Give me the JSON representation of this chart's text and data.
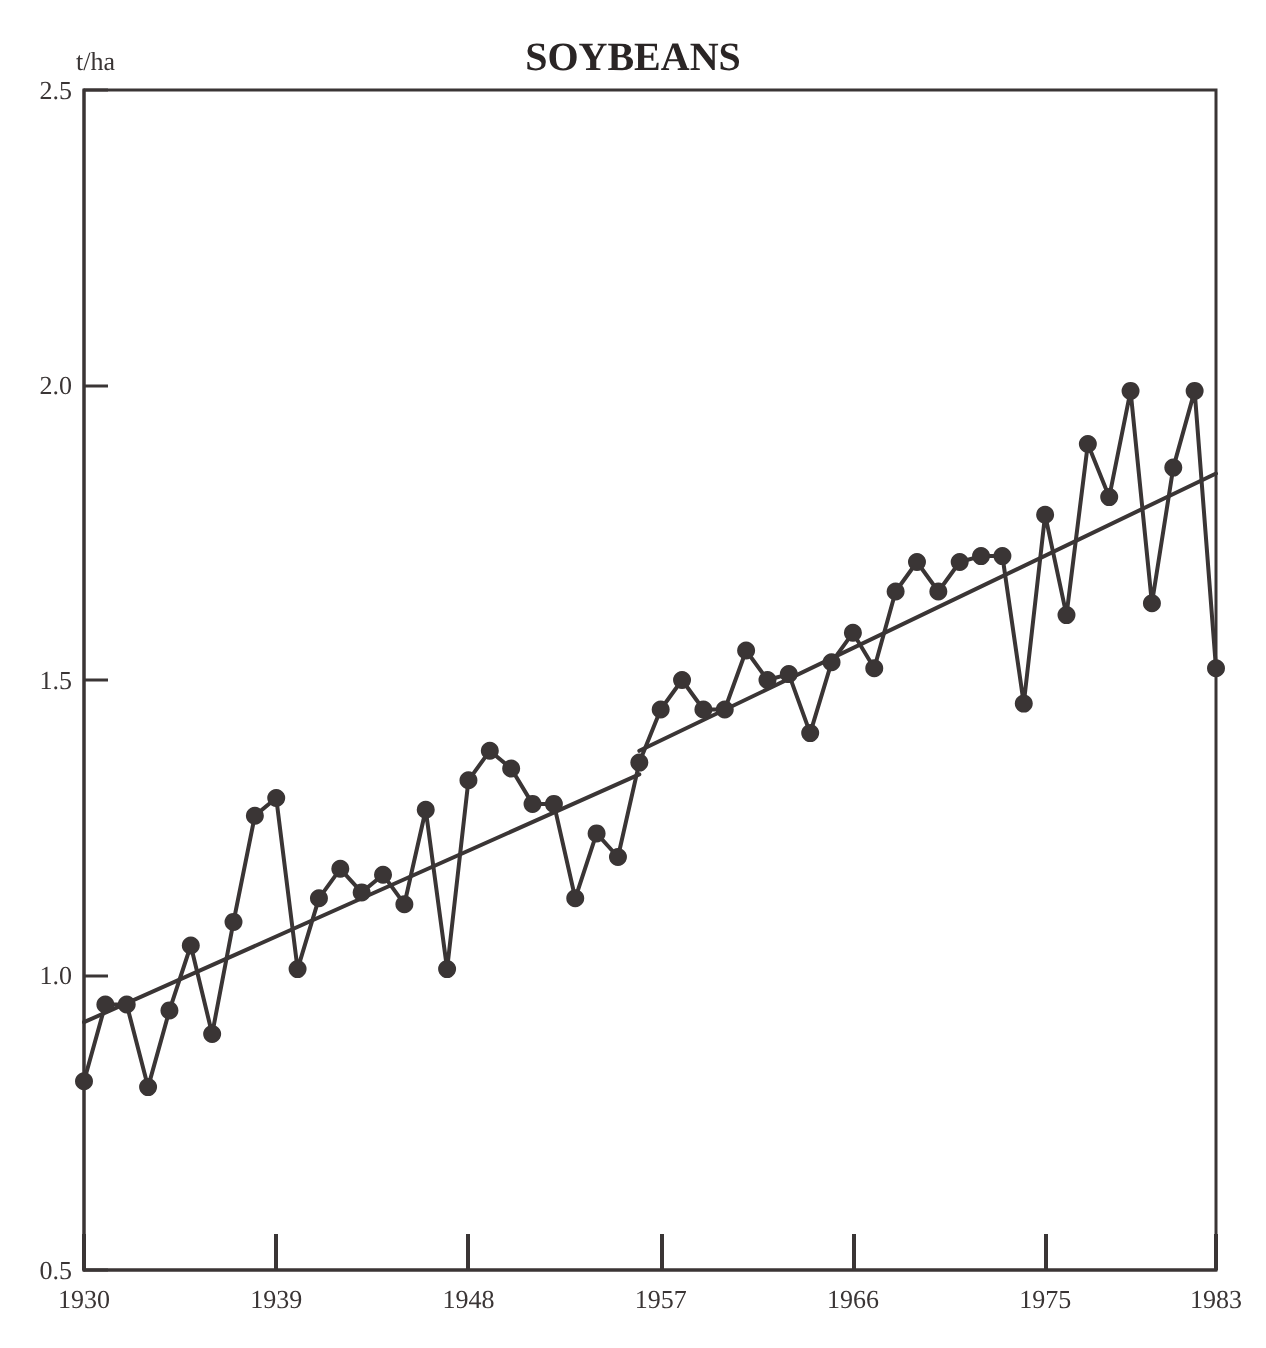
{
  "chart_data": {
    "type": "line",
    "title": "SOYBEANS",
    "ylabel": "t/ha",
    "xlim": [
      1930,
      1983
    ],
    "xticks": [
      1930,
      1939,
      1948,
      1957,
      1966,
      1975,
      1983
    ],
    "ylim": [
      0.5,
      2.5
    ],
    "yticks": [
      0.5,
      {
        "value": 1,
        "label": "1.0"
      },
      1.5,
      {
        "value": 2,
        "label": "2.0"
      },
      2.5
    ],
    "grid": false,
    "series": [
      {
        "color": "#3a3535",
        "marker": "circle",
        "x": [
          1930,
          1931,
          1932,
          1933,
          1934,
          1935,
          1936,
          1937,
          1938,
          1939,
          1940,
          1941,
          1942,
          1943,
          1944,
          1945,
          1946,
          1947,
          1948,
          1949,
          1950,
          1951,
          1952,
          1953,
          1954,
          1955,
          1956,
          1957,
          1958,
          1959,
          1960,
          1961,
          1962,
          1963,
          1964,
          1965,
          1966,
          1967,
          1968,
          1969,
          1970,
          1971,
          1972,
          1973,
          1974,
          1975,
          1976,
          1977,
          1978,
          1979,
          1980,
          1981,
          1982,
          1983
        ],
        "values": [
          0.82,
          0.95,
          0.95,
          0.81,
          0.94,
          1.05,
          0.9,
          1.09,
          1.27,
          1.3,
          1.01,
          1.13,
          1.18,
          1.14,
          1.17,
          1.12,
          1.28,
          1.01,
          1.33,
          1.38,
          1.35,
          1.29,
          1.29,
          1.13,
          1.24,
          1.2,
          1.36,
          1.45,
          1.5,
          1.45,
          1.45,
          1.55,
          1.5,
          1.51,
          1.41,
          1.53,
          1.58,
          1.52,
          1.65,
          1.7,
          1.65,
          1.7,
          1.71,
          1.71,
          1.46,
          1.78,
          1.61,
          1.9,
          1.81,
          1.99,
          1.63,
          1.86,
          1.99,
          1.52
        ]
      },
      {
        "color": "#3a3535",
        "marker": "none",
        "x": [
          1930,
          1956
        ],
        "values": [
          0.92,
          1.34
        ]
      },
      {
        "color": "#3a3535",
        "marker": "none",
        "x": [
          1956,
          1983
        ],
        "values": [
          1.38,
          1.85
        ]
      }
    ]
  }
}
